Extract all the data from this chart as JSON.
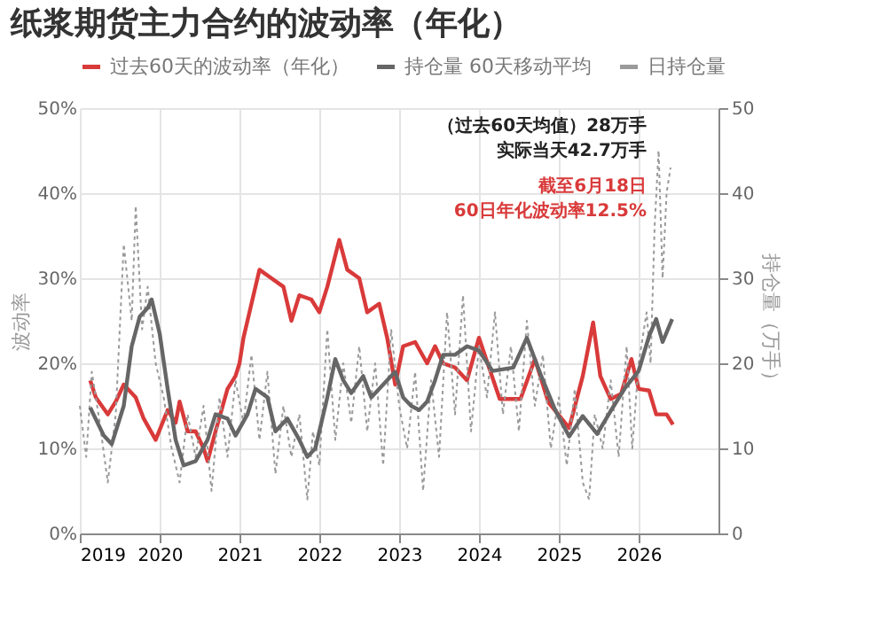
{
  "chart_data": {
    "type": "line",
    "title": "纸浆期货主力合约的波动率（年化）",
    "ylabel": "波动率",
    "y2label": "持仓量（万手）",
    "xlim": [
      2019,
      2027
    ],
    "xticks": [
      2019,
      2020,
      2021,
      2022,
      2023,
      2024,
      2025,
      2026
    ],
    "ylim": [
      0,
      50
    ],
    "yticks": [
      {
        "value": 0,
        "label": "0%"
      },
      {
        "value": 10,
        "label": "10%"
      },
      {
        "value": 20,
        "label": "20%"
      },
      {
        "value": 30,
        "label": "30%"
      },
      {
        "value": 40,
        "label": "40%"
      },
      {
        "value": 50,
        "label": "50%"
      }
    ],
    "y2lim": [
      0,
      50
    ],
    "y2ticks": [
      0,
      10,
      20,
      30,
      40,
      50
    ],
    "grid": true,
    "legend": "top",
    "marker": "none",
    "annotations": [
      "（过去60天均值）28万手",
      "实际当天42.7万手",
      "截至6月18日",
      "60日年化波动率12.5%"
    ],
    "series": [
      {
        "name": "过去60天的波动率（年化）",
        "color": "#d93a3a",
        "axis": "y",
        "line_style": "solid",
        "x": [
          2019.13,
          2019.2,
          2019.35,
          2019.45,
          2019.55,
          2019.7,
          2019.8,
          2019.95,
          2020.1,
          2020.2,
          2020.25,
          2020.35,
          2020.45,
          2020.55,
          2020.6,
          2020.7,
          2020.85,
          2020.95,
          2021.0,
          2021.05,
          2021.15,
          2021.25,
          2021.4,
          2021.55,
          2021.65,
          2021.75,
          2021.9,
          2022.0,
          2022.1,
          2022.25,
          2022.35,
          2022.5,
          2022.6,
          2022.75,
          2022.85,
          2022.95,
          2023.05,
          2023.2,
          2023.35,
          2023.45,
          2023.55,
          2023.7,
          2023.85,
          2024.0,
          2024.09,
          2024.26,
          2024.52,
          2024.7,
          2024.87,
          2025.13,
          2025.3,
          2025.43,
          2025.52,
          2025.65,
          2025.78,
          2025.91,
          2026.0,
          2026.13,
          2026.22,
          2026.35,
          2026.43
        ],
        "values": [
          18,
          16,
          14,
          15.5,
          17.5,
          16,
          13.5,
          11,
          14.5,
          13,
          15.5,
          12,
          12,
          10,
          8.5,
          12,
          17,
          18.5,
          20,
          23,
          27,
          31,
          30,
          29,
          25,
          28,
          27.5,
          26,
          29,
          34.5,
          31,
          30,
          26,
          27,
          23,
          17.5,
          22,
          22.5,
          20,
          22,
          20,
          19.5,
          18,
          23,
          20.5,
          15.8,
          15.8,
          20.5,
          15.4,
          12.4,
          18.5,
          24.8,
          18.5,
          15.8,
          16.4,
          20.5,
          17,
          16.8,
          14,
          14,
          12.8
        ]
      },
      {
        "name": "持仓量 60天移动平均",
        "color": "#666666",
        "axis": "y2",
        "line_style": "solid",
        "x": [
          2019.13,
          2019.3,
          2019.4,
          2019.55,
          2019.65,
          2019.75,
          2019.85,
          2019.9,
          2020.0,
          2020.1,
          2020.2,
          2020.3,
          2020.45,
          2020.6,
          2020.7,
          2020.85,
          2020.95,
          2021.1,
          2021.2,
          2021.35,
          2021.45,
          2021.6,
          2021.75,
          2021.85,
          2021.95,
          2022.1,
          2022.2,
          2022.3,
          2022.4,
          2022.55,
          2022.65,
          2022.8,
          2022.95,
          2023.05,
          2023.15,
          2023.25,
          2023.35,
          2023.45,
          2023.55,
          2023.7,
          2023.85,
          2024.0,
          2024.17,
          2024.43,
          2024.6,
          2024.78,
          2024.96,
          2025.13,
          2025.3,
          2025.48,
          2025.65,
          2025.83,
          2026.0,
          2026.13,
          2026.22,
          2026.3,
          2026.42
        ],
        "values": [
          14.8,
          11.5,
          10.5,
          15,
          22,
          25.5,
          26.5,
          27.5,
          23.5,
          17,
          11,
          8,
          8.5,
          11,
          14,
          13.5,
          11.5,
          14,
          17,
          16,
          12,
          13.5,
          11,
          9,
          10,
          16,
          20.5,
          18,
          16.5,
          18.5,
          16,
          17.5,
          19,
          16,
          15,
          14.5,
          15.5,
          18,
          21,
          21,
          22,
          21.5,
          19.1,
          19.5,
          23,
          18.5,
          14.4,
          11.4,
          13.8,
          11.7,
          14.4,
          17.1,
          19.1,
          23.2,
          25.2,
          22.5,
          25.2
        ]
      },
      {
        "name": "日持仓量",
        "color": "#9a9a9a",
        "axis": "y2",
        "line_style": "dotted",
        "x": [
          2019.0,
          2019.08,
          2019.15,
          2019.25,
          2019.35,
          2019.45,
          2019.55,
          2019.65,
          2019.7,
          2019.78,
          2019.85,
          2019.95,
          2020.05,
          2020.15,
          2020.25,
          2020.35,
          2020.45,
          2020.55,
          2020.65,
          2020.75,
          2020.85,
          2020.95,
          2021.05,
          2021.15,
          2021.25,
          2021.35,
          2021.45,
          2021.55,
          2021.65,
          2021.75,
          2021.85,
          2021.92,
          2022.0,
          2022.1,
          2022.2,
          2022.3,
          2022.4,
          2022.5,
          2022.6,
          2022.7,
          2022.8,
          2022.9,
          2023.0,
          2023.1,
          2023.2,
          2023.3,
          2023.4,
          2023.5,
          2023.6,
          2023.7,
          2023.8,
          2023.9,
          2024.0,
          2024.1,
          2024.2,
          2024.3,
          2024.4,
          2024.5,
          2024.6,
          2024.7,
          2024.8,
          2024.9,
          2025.0,
          2025.1,
          2025.2,
          2025.3,
          2025.38,
          2025.45,
          2025.55,
          2025.65,
          2025.75,
          2025.85,
          2025.92,
          2026.0,
          2026.1,
          2026.15,
          2026.2,
          2026.25,
          2026.3,
          2026.35,
          2026.4
        ],
        "values": [
          15,
          9,
          19,
          13,
          6,
          14,
          34,
          25,
          38.5,
          24,
          29,
          20,
          16,
          10,
          6,
          14,
          9,
          15,
          5,
          16,
          9,
          18,
          13,
          21,
          11,
          19,
          7,
          15,
          9,
          14,
          4,
          12,
          8,
          24,
          11,
          20,
          13,
          22,
          12,
          20,
          8,
          24,
          15,
          10,
          19,
          5,
          18,
          9,
          26,
          14,
          28,
          12,
          22,
          16,
          26,
          14,
          22,
          12,
          25,
          15,
          21,
          10,
          16,
          8,
          17,
          6,
          4,
          14,
          10,
          18,
          9,
          22,
          10,
          20,
          26,
          20,
          36,
          45,
          30,
          40,
          43
        ]
      }
    ]
  }
}
